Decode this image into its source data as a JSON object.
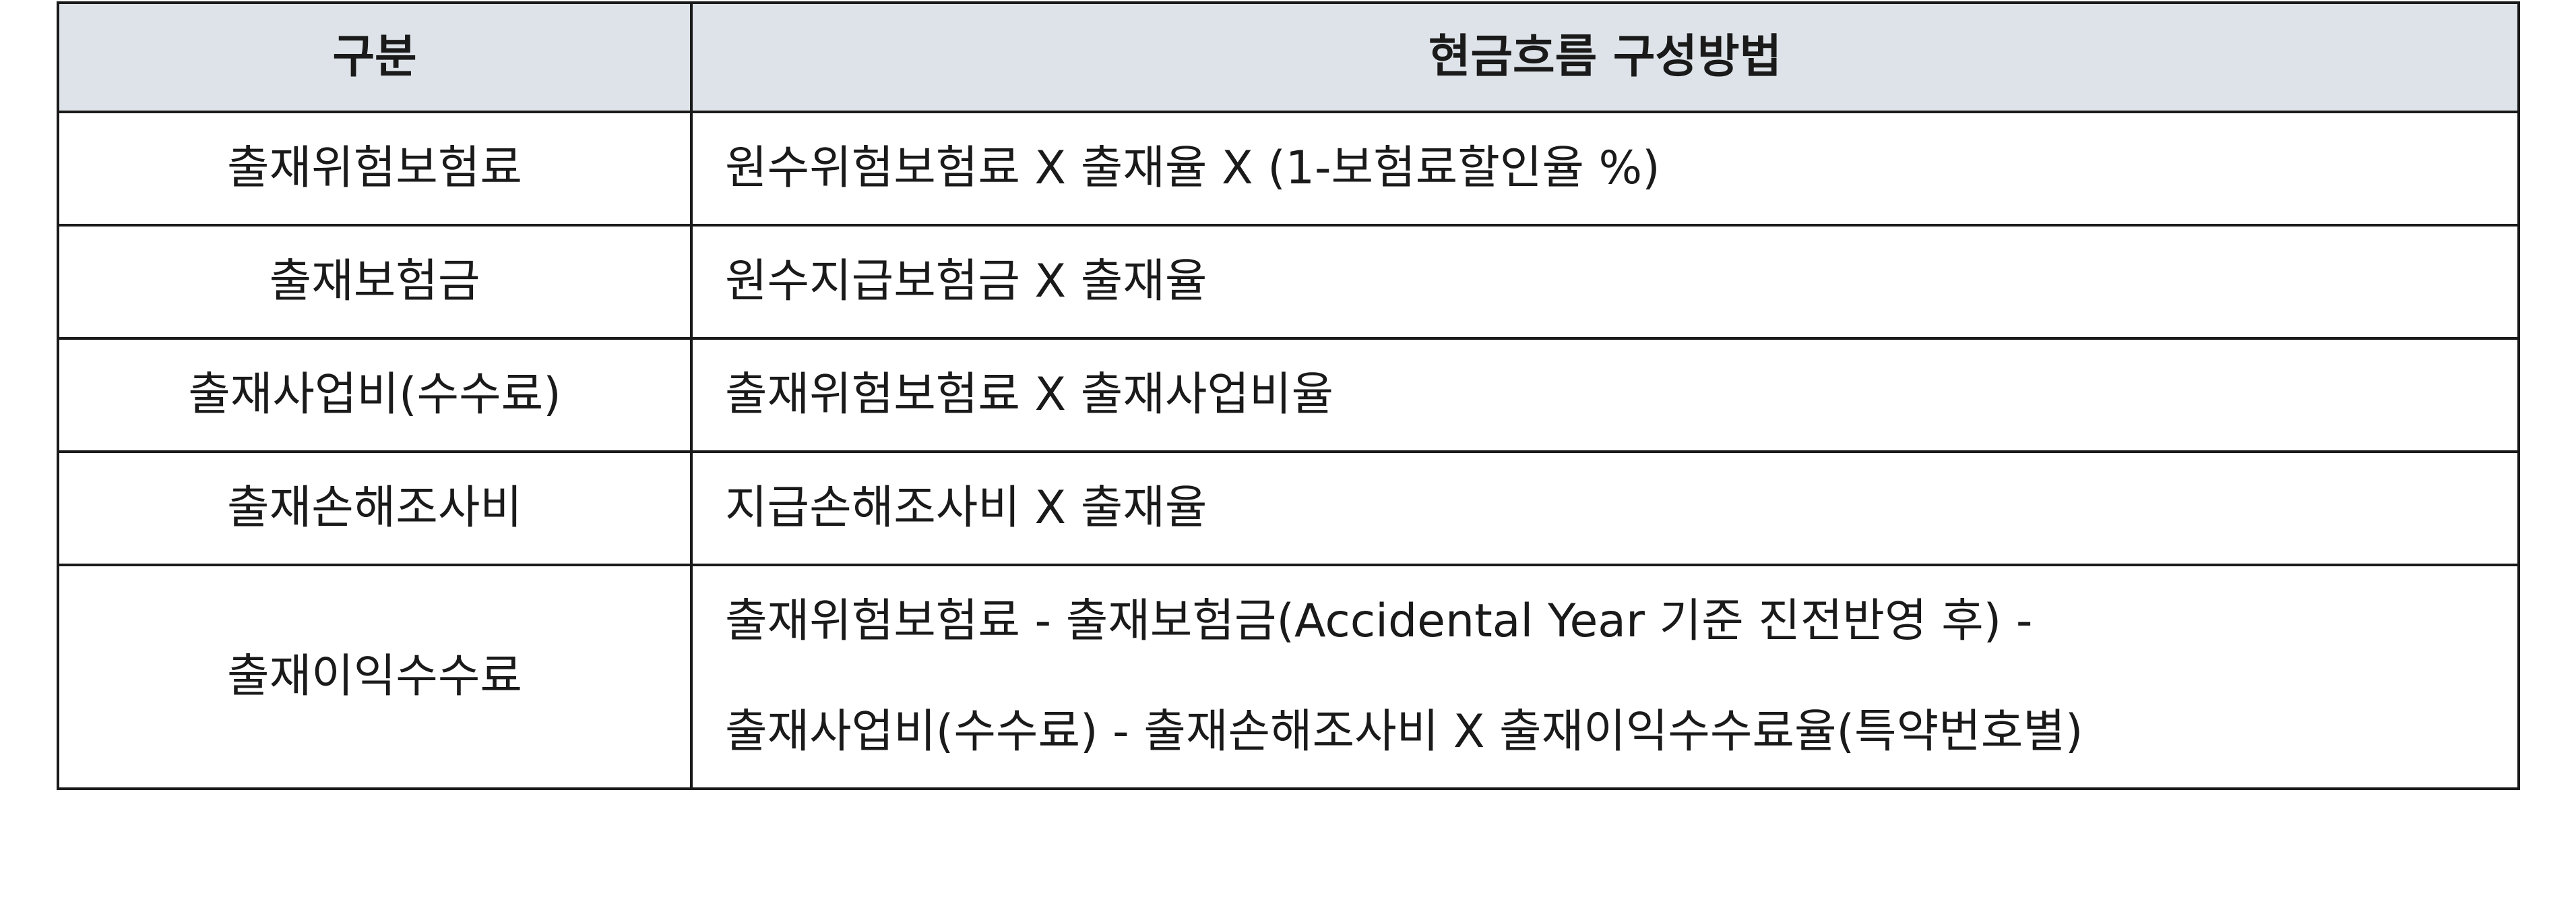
{
  "table": {
    "headers": [
      "구분",
      "현금흐름 구성방법"
    ],
    "rows": [
      {
        "category": "출재위험보험료",
        "method": [
          "원수위험보험료 X 출재율 X (1-보험료할인율 %)"
        ]
      },
      {
        "category": "출재보험금",
        "method": [
          "원수지급보험금 X 출재율"
        ]
      },
      {
        "category": "출재사업비(수수료)",
        "method": [
          "출재위험보험료 X 출재사업비율"
        ]
      },
      {
        "category": "출재손해조사비",
        "method": [
          "지급손해조사비 X 출재율"
        ]
      },
      {
        "category": "출재이익수수료",
        "method": [
          "출재위험보험료 - 출재보험금(Accidental Year 기준 진전반영 후) -",
          "출재사업비(수수료) - 출재손해조사비 X 출재이익수수료율(특약번호별)"
        ]
      }
    ]
  }
}
